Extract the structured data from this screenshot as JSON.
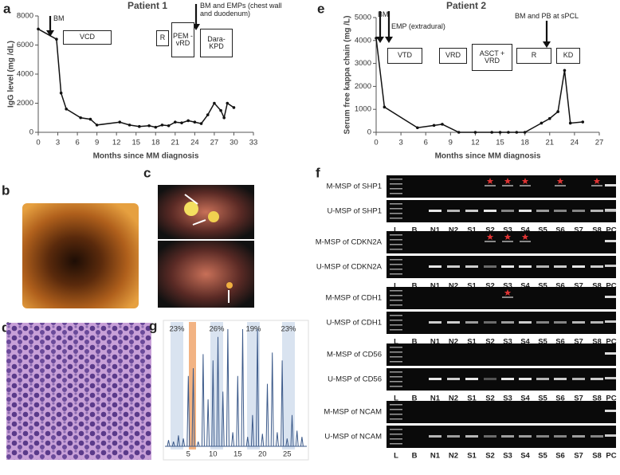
{
  "chart_data": [
    {
      "type": "line",
      "panel_label": "a",
      "title": "Patient 1",
      "x_label": "Months since MM diagnosis",
      "y_label": "IgG level (mg /dL)",
      "x": [
        0,
        2.8,
        3.5,
        4.3,
        6.5,
        8,
        9,
        12.5,
        14,
        15.5,
        17,
        18,
        19,
        20,
        21,
        22,
        23,
        24,
        25,
        26,
        27,
        28,
        28.5,
        29,
        30
      ],
      "values": [
        7100,
        6400,
        2700,
        1600,
        1000,
        900,
        500,
        700,
        500,
        400,
        450,
        350,
        500,
        450,
        700,
        650,
        800,
        700,
        600,
        1200,
        2000,
        1500,
        1000,
        2000,
        1700
      ],
      "color": "#111111",
      "xlim": [
        0,
        33
      ],
      "xticks": [
        0,
        3,
        6,
        9,
        12,
        15,
        18,
        21,
        24,
        27,
        30,
        33
      ],
      "ylim": [
        0,
        8000
      ],
      "yticks": [
        0,
        2000,
        4000,
        6000,
        8000
      ],
      "annotations": [
        "BM",
        "VCD",
        "R",
        "PEM - vRD",
        "Dara-KPD",
        "BM and EMPs (chest wall and duodenum)"
      ]
    },
    {
      "type": "line",
      "panel_label": "e",
      "title": "Patient 2",
      "x_label": "Months since MM diagnosis",
      "y_label": "Serum free kappa chain (mg /L)",
      "x": [
        0,
        1,
        5,
        7,
        8,
        10,
        12,
        14,
        15,
        16,
        17,
        18,
        20,
        21,
        22,
        22.8,
        23.5,
        25
      ],
      "values": [
        4100,
        1100,
        200,
        300,
        350,
        0,
        0,
        0,
        0,
        0,
        0,
        0,
        400,
        600,
        900,
        2700,
        400,
        450
      ],
      "color": "#111111",
      "xlim": [
        0,
        27
      ],
      "xticks": [
        0,
        3,
        6,
        9,
        12,
        15,
        18,
        21,
        24,
        27
      ],
      "ylim": [
        0,
        5000
      ],
      "yticks": [
        0,
        1000,
        2000,
        3000,
        4000,
        5000
      ],
      "annotations": [
        "BM",
        "EMP (extradural)",
        "VTD",
        "VRD",
        "ASCT + VRD",
        "R",
        "KD",
        "BM and PB at sPCL"
      ]
    }
  ],
  "panels": {
    "b": "b",
    "c": "c",
    "d": "d",
    "f": "f",
    "g": "g"
  },
  "panel_f": {
    "rows": [
      "M-MSP of SHP1",
      "U-MSP of SHP1",
      "M-MSP of CDKN2A",
      "U-MSP of CDKN2A",
      "M-MSP of CDH1",
      "U-MSP of CDH1",
      "M-MSP of CD56",
      "U-MSP of CD56",
      "M-MSP of NCAM",
      "U-MSP of NCAM"
    ],
    "lanes": [
      "L",
      "B",
      "N1",
      "N2",
      "S1",
      "S2",
      "S3",
      "S4",
      "S5",
      "S6",
      "S7",
      "S8",
      "PC"
    ]
  },
  "panel_g": {
    "percentages": [
      "23%",
      "26%",
      "19%",
      "23%"
    ],
    "ticks": [
      5,
      10,
      15,
      20,
      25
    ]
  }
}
